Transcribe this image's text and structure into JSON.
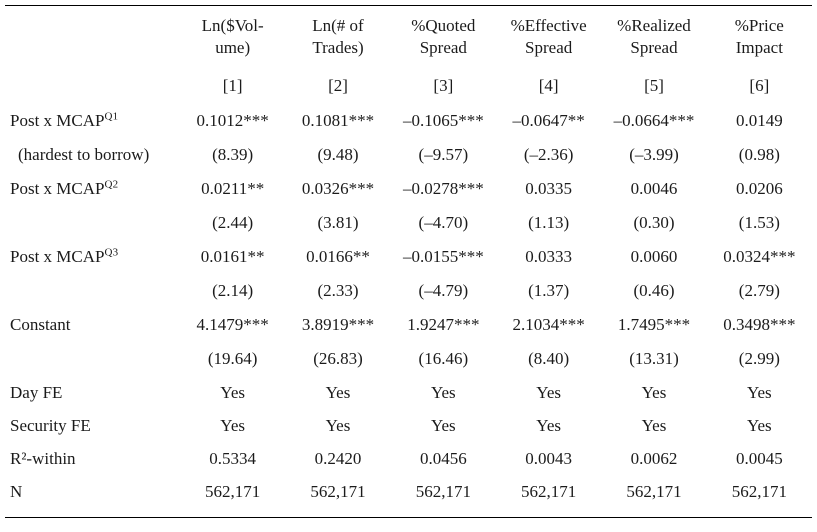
{
  "page": {
    "background_color": "#ffffff",
    "text_color": "#1b1b1b",
    "rule_color": "#000000"
  },
  "table": {
    "column_headers": [
      {
        "line1": "Ln($Vol-",
        "line2": "ume)",
        "number": "[1]"
      },
      {
        "line1": "Ln(# of",
        "line2": "Trades)",
        "number": "[2]"
      },
      {
        "line1": "%Quoted",
        "line2": "Spread",
        "number": "[3]"
      },
      {
        "line1": "%Effective",
        "line2": "Spread",
        "number": "[4]"
      },
      {
        "line1": "%Realized",
        "line2": "Spread",
        "number": "[5]"
      },
      {
        "line1": "%Price",
        "line2": "Impact",
        "number": "[6]"
      }
    ],
    "rows": [
      {
        "kind": "coef",
        "label": "Post x MCAP",
        "label_sup": "Q1",
        "cells": [
          "0.1012***",
          "0.1081***",
          "–0.1065***",
          "–0.0647**",
          "–0.0664***",
          "0.0149"
        ]
      },
      {
        "kind": "tstat",
        "label": "(hardest to borrow)",
        "label_sup": "",
        "cells": [
          "(8.39)",
          "(9.48)",
          "(–9.57)",
          "(–2.36)",
          "(–3.99)",
          "(0.98)"
        ]
      },
      {
        "kind": "coef",
        "label": "Post x MCAP",
        "label_sup": "Q2",
        "cells": [
          "0.0211**",
          "0.0326***",
          "–0.0278***",
          "0.0335",
          "0.0046",
          "0.0206"
        ]
      },
      {
        "kind": "tstat",
        "label": "",
        "label_sup": "",
        "cells": [
          "(2.44)",
          "(3.81)",
          "(–4.70)",
          "(1.13)",
          "(0.30)",
          "(1.53)"
        ]
      },
      {
        "kind": "coef",
        "label": "Post x MCAP",
        "label_sup": "Q3",
        "cells": [
          "0.0161**",
          "0.0166**",
          "–0.0155***",
          "0.0333",
          "0.0060",
          "0.0324***"
        ]
      },
      {
        "kind": "tstat",
        "label": "",
        "label_sup": "",
        "cells": [
          "(2.14)",
          "(2.33)",
          "(–4.79)",
          "(1.37)",
          "(0.46)",
          "(2.79)"
        ]
      },
      {
        "kind": "coef",
        "label": "Constant",
        "label_sup": "",
        "cells": [
          "4.1479***",
          "3.8919***",
          "1.9247***",
          "2.1034***",
          "1.7495***",
          "0.3498***"
        ]
      },
      {
        "kind": "tstat",
        "label": "",
        "label_sup": "",
        "cells": [
          "(19.64)",
          "(26.83)",
          "(16.46)",
          "(8.40)",
          "(13.31)",
          "(2.99)"
        ]
      },
      {
        "kind": "info",
        "label": "Day FE",
        "label_sup": "",
        "cells": [
          "Yes",
          "Yes",
          "Yes",
          "Yes",
          "Yes",
          "Yes"
        ]
      },
      {
        "kind": "info",
        "label": "Security FE",
        "label_sup": "",
        "cells": [
          "Yes",
          "Yes",
          "Yes",
          "Yes",
          "Yes",
          "Yes"
        ]
      },
      {
        "kind": "info",
        "label": "R²-within",
        "label_sup": "",
        "cells": [
          "0.5334",
          "0.2420",
          "0.0456",
          "0.0043",
          "0.0062",
          "0.0045"
        ]
      },
      {
        "kind": "info",
        "label": "N",
        "label_sup": "",
        "cells": [
          "562,171",
          "562,171",
          "562,171",
          "562,171",
          "562,171",
          "562,171"
        ]
      }
    ]
  }
}
